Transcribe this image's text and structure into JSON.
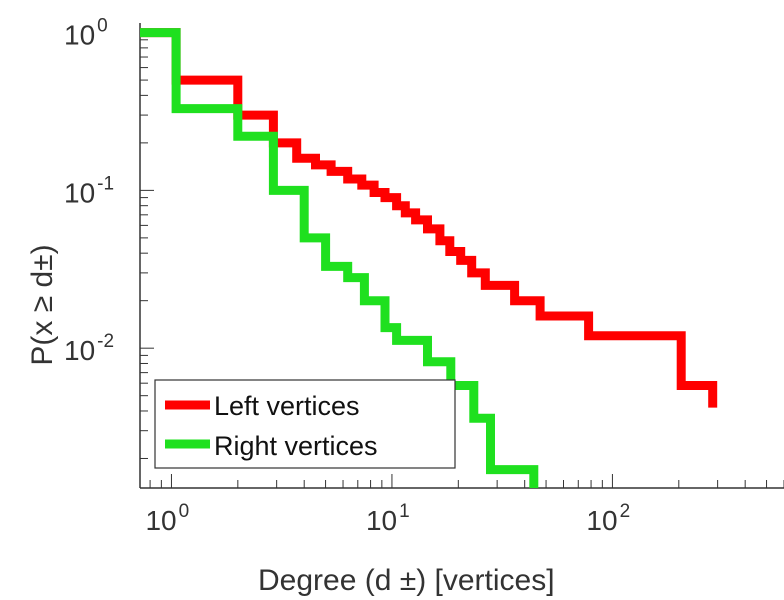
{
  "chart_data": {
    "type": "line",
    "step": true,
    "xscale": "log",
    "yscale": "log",
    "xlim": [
      0.72,
      600
    ],
    "ylim": [
      0.0013,
      1.15
    ],
    "grid": false,
    "legend_placement": "bottom-left",
    "xlabel": "Degree (d ±) [vertices]",
    "ylabel": "P(x ≥ d±)",
    "x_ticks": [
      {
        "value": 1,
        "base": "10",
        "exp": "0"
      },
      {
        "value": 10,
        "base": "10",
        "exp": "1"
      },
      {
        "value": 100,
        "base": "10",
        "exp": "2"
      }
    ],
    "y_ticks": [
      {
        "value": 1,
        "base": "10",
        "exp": "0"
      },
      {
        "value": 0.1,
        "base": "10",
        "exp": "-1"
      },
      {
        "value": 0.01,
        "base": "10",
        "exp": "-2"
      }
    ],
    "series": [
      {
        "name": "Left vertices",
        "color": "#ff0000",
        "x": [
          0.72,
          1.05,
          1.05,
          2,
          2,
          2.9,
          2.9,
          3.7,
          3.7,
          4.5,
          4.5,
          5.3,
          5.3,
          6.3,
          6.3,
          7.3,
          7.3,
          8.3,
          8.3,
          9.3,
          9.3,
          10.5,
          10.5,
          11.5,
          11.5,
          12.8,
          12.8,
          14.5,
          14.5,
          16.5,
          16.5,
          18.3,
          18.3,
          20.5,
          20.5,
          23,
          23,
          26.5,
          26.5,
          36,
          36,
          47,
          47,
          78,
          78,
          205,
          205,
          285,
          285
        ],
        "y": [
          1,
          1,
          0.5,
          0.5,
          0.3,
          0.3,
          0.2,
          0.2,
          0.16,
          0.16,
          0.145,
          0.145,
          0.132,
          0.132,
          0.118,
          0.118,
          0.108,
          0.108,
          0.097,
          0.097,
          0.09,
          0.09,
          0.08,
          0.08,
          0.072,
          0.072,
          0.065,
          0.065,
          0.057,
          0.057,
          0.048,
          0.048,
          0.041,
          0.041,
          0.036,
          0.036,
          0.03,
          0.03,
          0.025,
          0.025,
          0.02,
          0.02,
          0.016,
          0.016,
          0.012,
          0.012,
          0.0058,
          0.0058,
          0.0042
        ]
      },
      {
        "name": "Right vertices",
        "color": "#1fe01f",
        "x": [
          0.72,
          1.05,
          1.05,
          2,
          2,
          2.9,
          2.9,
          4,
          4,
          5,
          5,
          6.3,
          6.3,
          7.5,
          7.5,
          9.3,
          9.3,
          10.5,
          10.5,
          14.5,
          14.5,
          18.5,
          18.5,
          23.5,
          23.5,
          28,
          28,
          44,
          44
        ],
        "y": [
          1,
          1,
          0.33,
          0.33,
          0.22,
          0.22,
          0.1,
          0.1,
          0.05,
          0.05,
          0.033,
          0.033,
          0.028,
          0.028,
          0.02,
          0.02,
          0.0135,
          0.0135,
          0.0112,
          0.0112,
          0.0082,
          0.0082,
          0.0058,
          0.0058,
          0.0036,
          0.0036,
          0.0017,
          0.0017,
          0.0013
        ]
      }
    ]
  }
}
